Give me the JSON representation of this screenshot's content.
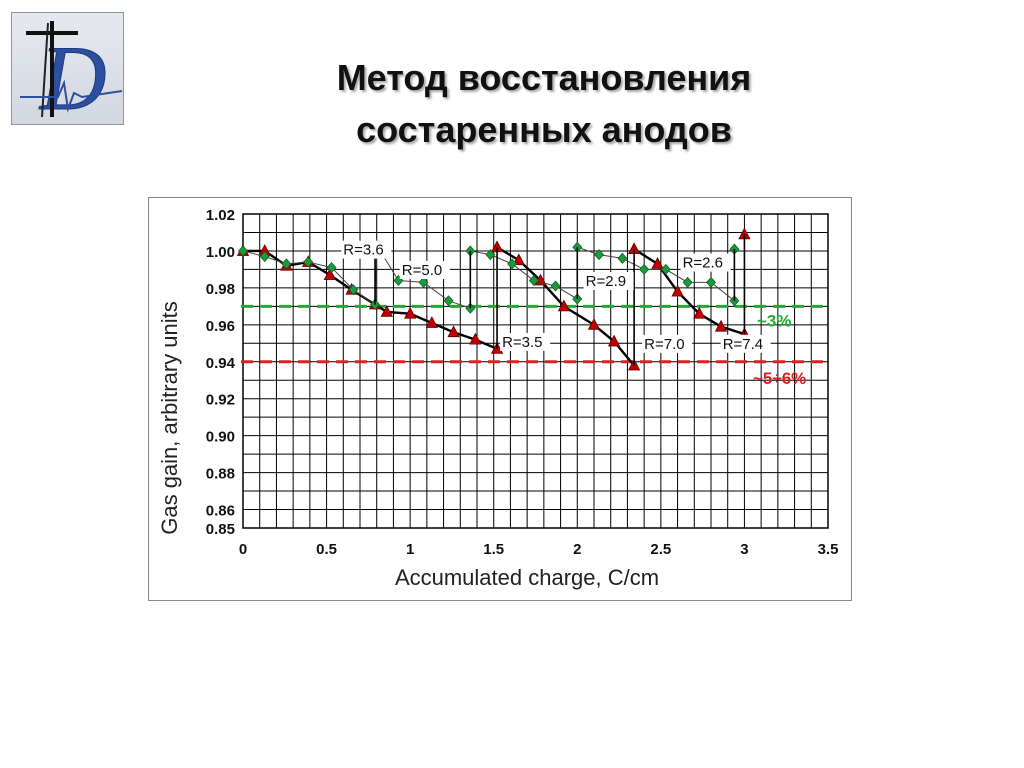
{
  "slide": {
    "title_line1": "Метод восстановления",
    "title_line2": "состаренных анодов",
    "logo_icon": "d-logo-icon"
  },
  "chart_data": {
    "type": "line",
    "xlabel": "Accumulated charge, C/cm",
    "ylabel": "Gas gain, arbitrary units",
    "xlim": [
      0,
      3.5
    ],
    "ylim": [
      0.85,
      1.02
    ],
    "x_ticks": [
      "0",
      "0.5",
      "1",
      "1.5",
      "2",
      "2.5",
      "3",
      "3.5"
    ],
    "y_ticks": [
      "0.85",
      "0.86",
      "0.88",
      "0.90",
      "0.92",
      "0.94",
      "0.96",
      "0.98",
      "1.00",
      "1.02"
    ],
    "grid": true,
    "series": [
      {
        "color": "#c00000",
        "marker": "triangle",
        "segments": [
          [
            [
              0.0,
              1.0
            ],
            [
              0.13,
              1.0
            ],
            [
              0.26,
              0.992
            ],
            [
              0.39,
              0.994
            ],
            [
              0.52,
              0.987
            ]
          ],
          [
            [
              0.52,
              0.987
            ],
            [
              0.65,
              0.979
            ],
            [
              0.79,
              0.971
            ],
            [
              0.86,
              0.967
            ],
            [
              1.0,
              0.966
            ],
            [
              1.13,
              0.961
            ],
            [
              1.26,
              0.956
            ],
            [
              1.39,
              0.952
            ],
            [
              1.52,
              0.947
            ]
          ],
          [
            [
              1.52,
              1.002
            ],
            [
              1.65,
              0.995
            ],
            [
              1.78,
              0.984
            ],
            [
              1.92,
              0.97
            ],
            [
              2.1,
              0.96
            ],
            [
              2.22,
              0.951
            ],
            [
              2.34,
              0.938
            ]
          ],
          [
            [
              2.34,
              1.001
            ],
            [
              2.48,
              0.993
            ],
            [
              2.6,
              0.978
            ],
            [
              2.73,
              0.966
            ],
            [
              2.86,
              0.959
            ],
            [
              3.0,
              0.955
            ]
          ],
          [
            [
              3.0,
              1.009
            ]
          ]
        ]
      },
      {
        "color": "#1a9a3a",
        "marker": "diamond",
        "segments": [
          [
            [
              0.0,
              1.0
            ],
            [
              0.13,
              0.997
            ],
            [
              0.26,
              0.993
            ],
            [
              0.39,
              0.994
            ],
            [
              0.53,
              0.991
            ],
            [
              0.66,
              0.979
            ],
            [
              0.79,
              0.971
            ],
            [
              0.8,
              1.003
            ],
            [
              0.93,
              0.984
            ],
            [
              1.08,
              0.983
            ],
            [
              1.23,
              0.973
            ],
            [
              1.36,
              0.969
            ],
            [
              1.36,
              1.0
            ],
            [
              1.48,
              0.998
            ],
            [
              1.61,
              0.993
            ],
            [
              1.74,
              0.984
            ],
            [
              1.87,
              0.981
            ],
            [
              2.0,
              0.974
            ],
            [
              2.0,
              1.002
            ],
            [
              2.13,
              0.998
            ],
            [
              2.27,
              0.996
            ],
            [
              2.4,
              0.99
            ],
            [
              2.53,
              0.99
            ],
            [
              2.66,
              0.983
            ],
            [
              2.8,
              0.983
            ],
            [
              2.94,
              0.973
            ],
            [
              2.94,
              1.001
            ]
          ]
        ]
      }
    ],
    "reference_lines": [
      {
        "y": 0.97,
        "color": "#22aa33",
        "label": "~3%"
      },
      {
        "y": 0.94,
        "color": "#e02020",
        "label": "~5÷6%"
      }
    ],
    "annotations": [
      {
        "text": "R=3.6",
        "x": 0.6,
        "y": 0.998
      },
      {
        "text": "R=5.0",
        "x": 0.95,
        "y": 0.987
      },
      {
        "text": "R=3.5",
        "x": 1.55,
        "y": 0.948
      },
      {
        "text": "R=2.9",
        "x": 2.05,
        "y": 0.981
      },
      {
        "text": "R=7.0",
        "x": 2.4,
        "y": 0.947
      },
      {
        "text": "R=2.6",
        "x": 2.63,
        "y": 0.991
      },
      {
        "text": "R=7.4",
        "x": 2.87,
        "y": 0.947
      }
    ]
  }
}
